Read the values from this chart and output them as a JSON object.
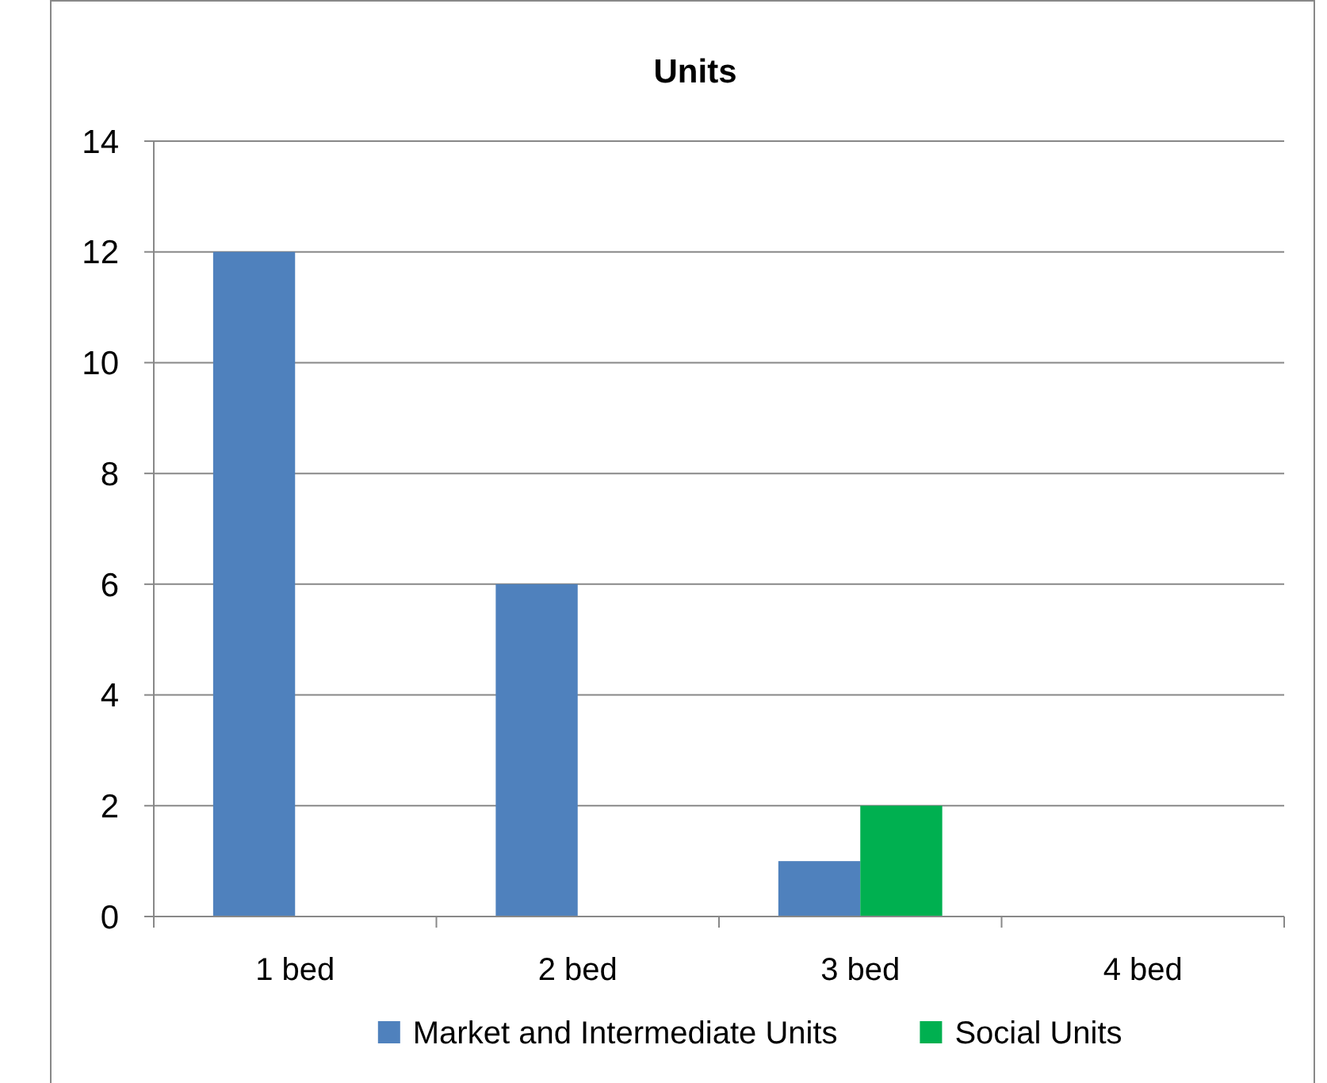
{
  "chart_data": {
    "type": "bar",
    "title": "Units",
    "categories": [
      "1 bed",
      "2 bed",
      "3 bed",
      "4 bed"
    ],
    "series": [
      {
        "name": "Market and Intermediate Units",
        "color": "#4f81bd",
        "values": [
          12,
          6,
          1,
          0
        ]
      },
      {
        "name": "Social Units",
        "color": "#00b050",
        "values": [
          0,
          0,
          2,
          0
        ]
      }
    ],
    "ylim": [
      0,
      14
    ],
    "yticks": [
      0,
      2,
      4,
      6,
      8,
      10,
      12,
      14
    ],
    "grid": "y",
    "legend": "bottom"
  }
}
